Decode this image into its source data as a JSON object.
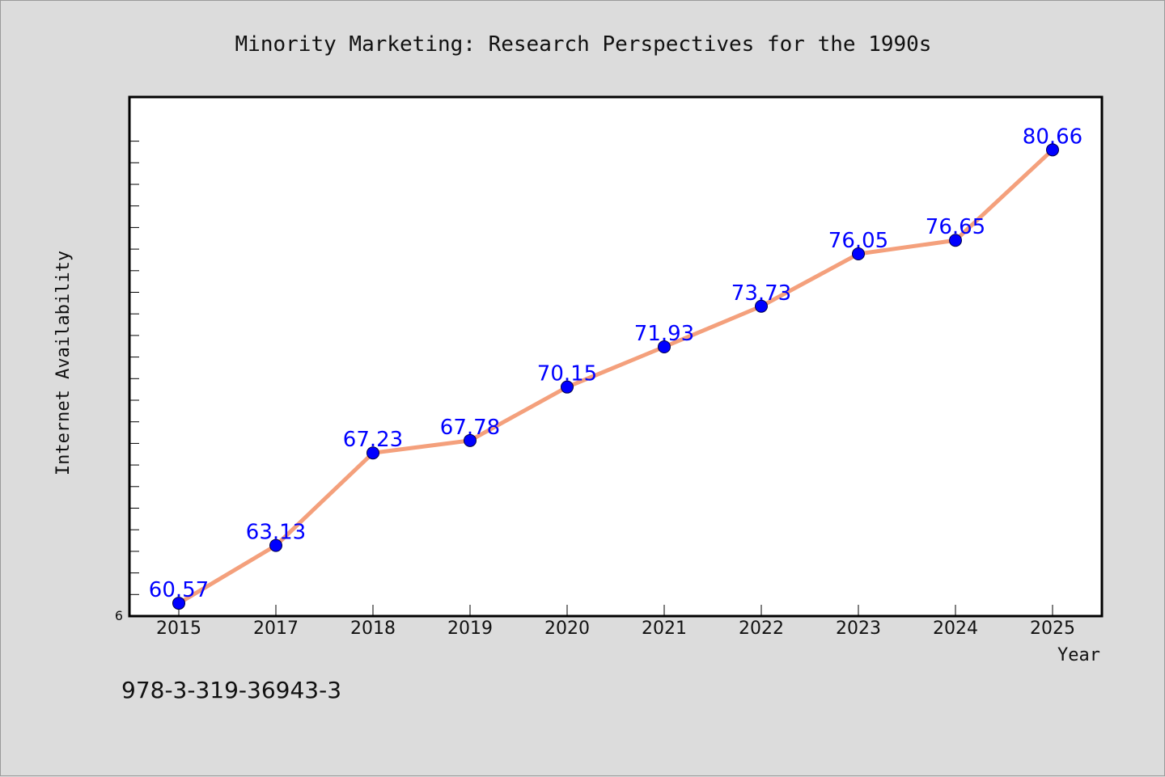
{
  "chart_data": {
    "type": "line",
    "title": "Minority Marketing: Research Perspectives for the 1990s",
    "xlabel": "Year",
    "ylabel": "Internet Availability",
    "categories": [
      "2015",
      "2017",
      "2018",
      "2019",
      "2020",
      "2021",
      "2022",
      "2023",
      "2024",
      "2025"
    ],
    "values": [
      60.57,
      63.13,
      67.23,
      67.78,
      70.15,
      71.93,
      73.73,
      76.05,
      76.65,
      80.66
    ],
    "data_labels": [
      "60.57",
      "63.13",
      "67.23",
      "67.78",
      "70.15",
      "71.93",
      "73.73",
      "76.05",
      "76.65",
      "80.66"
    ],
    "y_tick_label": "6",
    "ylim": [
      60,
      83
    ],
    "grid": false,
    "legend": "none",
    "line_color": "#f4a07c",
    "marker_color": "#0000ff",
    "label_color": "#0000ff"
  },
  "footer": {
    "isbn": "978-3-319-36943-3"
  }
}
